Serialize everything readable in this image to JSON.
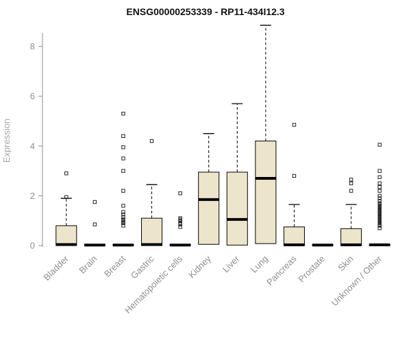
{
  "chart_data": {
    "type": "boxplot",
    "title": "ENSG00000253339 - RP11-434I12.3",
    "xlabel": "",
    "ylabel": "Expression",
    "ylim": [
      0,
      8.9
    ],
    "yticks": [
      0,
      2,
      4,
      6,
      8
    ],
    "grid": false,
    "legend": "none",
    "colors": {
      "box_fill": "#ede5cb",
      "box_stroke": "#000000",
      "median": "#000000",
      "whisker": "#000000",
      "outlier": "#222222",
      "axis": "#8e8e8e",
      "tick_label": "#8e8e8e",
      "axis_title": "#a6a6a6",
      "title": "#111111"
    },
    "categories": [
      "Bladder",
      "Brain",
      "Breast",
      "Gastric",
      "Hematopoietic cells",
      "Kidney",
      "Liver",
      "Lung",
      "Pancreas",
      "Prostate",
      "Skin",
      "Unknown / Other"
    ],
    "boxes": [
      {
        "category": "Bladder",
        "whisker_low": 0,
        "q1": 0,
        "median": 0.04,
        "q3": 0.8,
        "whisker_high": 1.9,
        "outliers": [
          1.95,
          2.9
        ]
      },
      {
        "category": "Brain",
        "whisker_low": 0,
        "q1": 0,
        "median": 0.02,
        "q3": 0.05,
        "whisker_high": 0.05,
        "outliers": [
          0.85,
          1.75
        ]
      },
      {
        "category": "Breast",
        "whisker_low": 0,
        "q1": 0,
        "median": 0.02,
        "q3": 0.05,
        "whisker_high": 0.05,
        "outliers": [
          0.8,
          0.9,
          0.95,
          1.0,
          1.05,
          1.15,
          1.25,
          1.35,
          1.6,
          2.2,
          3.0,
          3.5,
          3.95,
          4.4,
          5.3
        ]
      },
      {
        "category": "Gastric",
        "whisker_low": 0,
        "q1": 0,
        "median": 0.04,
        "q3": 1.1,
        "whisker_high": 2.45,
        "outliers": [
          4.2
        ]
      },
      {
        "category": "Hematopoietic cells",
        "whisker_low": 0,
        "q1": 0,
        "median": 0.02,
        "q3": 0.05,
        "whisker_high": 0.05,
        "outliers": [
          0.75,
          0.85,
          0.9,
          1.0,
          1.05,
          1.1,
          2.1
        ]
      },
      {
        "category": "Kidney",
        "whisker_low": 0.05,
        "q1": 0.05,
        "median": 1.85,
        "q3": 2.95,
        "whisker_high": 4.5,
        "outliers": []
      },
      {
        "category": "Liver",
        "whisker_low": 0.02,
        "q1": 0.02,
        "median": 1.05,
        "q3": 2.95,
        "whisker_high": 5.7,
        "outliers": []
      },
      {
        "category": "Lung",
        "whisker_low": 0.08,
        "q1": 0.08,
        "median": 2.7,
        "q3": 4.2,
        "whisker_high": 8.85,
        "outliers": []
      },
      {
        "category": "Pancreas",
        "whisker_low": 0,
        "q1": 0,
        "median": 0.03,
        "q3": 0.75,
        "whisker_high": 1.65,
        "outliers": [
          2.8,
          4.85
        ]
      },
      {
        "category": "Prostate",
        "whisker_low": 0,
        "q1": 0,
        "median": 0.02,
        "q3": 0.04,
        "whisker_high": 0.04,
        "outliers": []
      },
      {
        "category": "Skin",
        "whisker_low": 0,
        "q1": 0,
        "median": 0.03,
        "q3": 0.68,
        "whisker_high": 1.65,
        "outliers": [
          2.2,
          2.5,
          2.65
        ]
      },
      {
        "category": "Unknown / Other",
        "whisker_low": 0,
        "q1": 0,
        "median": 0.03,
        "q3": 0.06,
        "whisker_high": 0.06,
        "outliers": [
          0.7,
          0.8,
          0.85,
          0.9,
          0.95,
          1.0,
          1.05,
          1.1,
          1.15,
          1.2,
          1.25,
          1.3,
          1.35,
          1.4,
          1.45,
          1.5,
          1.55,
          1.6,
          1.65,
          1.7,
          1.8,
          1.9,
          2.0,
          2.2,
          2.35,
          2.5,
          2.75,
          3.0,
          4.05
        ]
      }
    ]
  }
}
